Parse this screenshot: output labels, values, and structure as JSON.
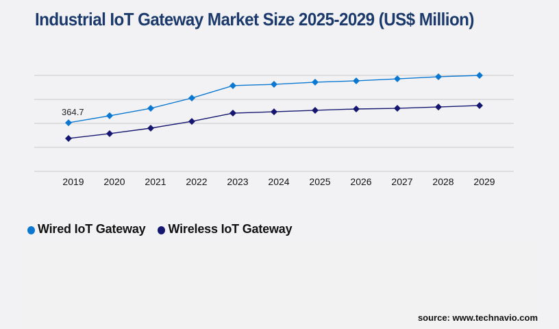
{
  "title": "Industrial IoT Gateway Market Size 2025-2029 (US$ Million)",
  "source": "source: www.technavio.com",
  "colors": {
    "title": "#1b3a6b",
    "grid": "#c8c8cc",
    "wired": "#0a78d1",
    "wireless": "#15166f"
  },
  "chart_data": {
    "type": "line",
    "title": "Industrial IoT Gateway Market Size 2025-2029 (US$ Million)",
    "xlabel": "",
    "ylabel": "",
    "x": [
      "2019",
      "2020",
      "2021",
      "2022",
      "2023",
      "2024",
      "2025",
      "2026",
      "2027",
      "2028",
      "2029"
    ],
    "ylim": [
      0,
      720
    ],
    "yticks": [
      0,
      180,
      360,
      540,
      720
    ],
    "y_tick_labels_visible": false,
    "grid": true,
    "legend_position": "bottom-left",
    "series": [
      {
        "name": "Wired IoT Gateway",
        "color": "#0a78d1",
        "marker": "diamond",
        "values": [
          364.7,
          417,
          473,
          550,
          643,
          653,
          669,
          679,
          694,
          710,
          720
        ]
      },
      {
        "name": "Wireless IoT Gateway",
        "color": "#15166f",
        "marker": "diamond",
        "values": [
          247,
          283,
          324,
          375,
          437,
          447,
          458,
          468,
          473,
          483,
          494
        ]
      }
    ],
    "annotations": [
      {
        "series": "Wired IoT Gateway",
        "x": "2019",
        "text": "364.7"
      }
    ]
  }
}
